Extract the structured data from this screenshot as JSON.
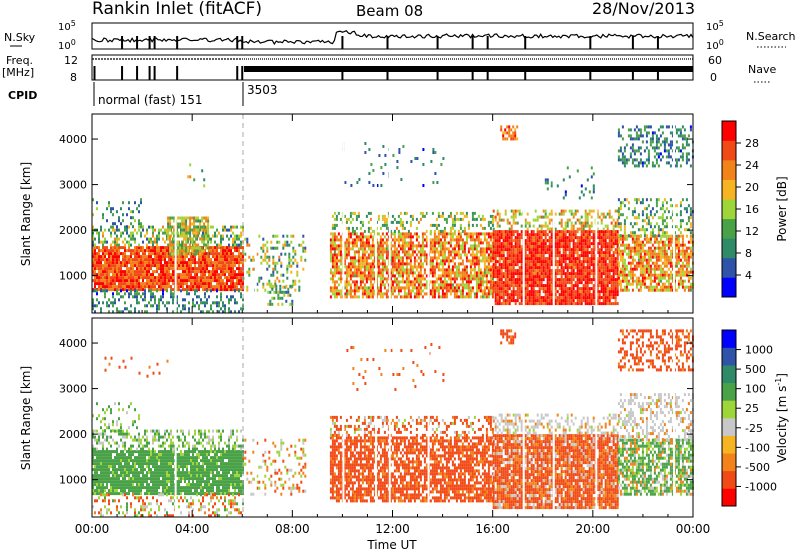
{
  "header": {
    "station": "Rankin Inlet (fitACF)",
    "beam": "Beam 08",
    "date": "28/Nov/2013"
  },
  "top_panels": {
    "nsky_label": "N.Sky",
    "nsky_ticks": [
      "10^5",
      "10^0"
    ],
    "nsearch_label": "N.Search",
    "nsearch_ticks": [
      "10^5",
      "10^0"
    ],
    "freq_label": "Freq.",
    "freq_unit": "[MHz]",
    "freq_ticks": [
      "12",
      "8"
    ],
    "nave_label": "Nave",
    "nave_ticks": [
      "60",
      "0"
    ],
    "cpid_label": "CPID",
    "cpid_segments": [
      {
        "label": "normal (fast) 151",
        "start_hour": 0,
        "end_hour": 6.05
      },
      {
        "label": "3503",
        "start_hour": 6.05,
        "end_hour": 24
      }
    ]
  },
  "chart_data": [
    {
      "type": "heatmap",
      "title": "",
      "quantity": "Power",
      "colorbar_label": "Power [dB]",
      "colorbar_ticks": [
        "4",
        "8",
        "12",
        "16",
        "20",
        "24",
        "28"
      ],
      "colorbar_range": [
        0,
        32
      ],
      "colormap": [
        "#0000ff",
        "#2e53a8",
        "#2f8a68",
        "#4aa248",
        "#9ed63a",
        "#f6b422",
        "#f2831a",
        "#f24a16",
        "#ff0000"
      ],
      "xlabel": "",
      "ylabel": "Slant Range [km]",
      "x_ticks": [
        "00:00",
        "04:00",
        "08:00",
        "12:00",
        "16:00",
        "20:00",
        "00:00"
      ],
      "xlim_hours": [
        0,
        24
      ],
      "y_ticks": [
        "1000",
        "2000",
        "3000",
        "4000"
      ],
      "ylim_km": [
        180,
        4550
      ],
      "scatter_regions": [
        {
          "t0": 0.0,
          "t1": 6.0,
          "r0": 700,
          "r1": 1650,
          "dens": 0.92,
          "value_lo": 22,
          "value_hi": 31
        },
        {
          "t0": 0.0,
          "t1": 6.0,
          "r0": 1650,
          "r1": 2100,
          "dens": 0.45,
          "value_lo": 6,
          "value_hi": 22
        },
        {
          "t0": 3.0,
          "t1": 4.6,
          "r0": 1500,
          "r1": 2300,
          "dens": 0.7,
          "value_lo": 10,
          "value_hi": 24
        },
        {
          "t0": 0.0,
          "t1": 6.0,
          "r0": 200,
          "r1": 700,
          "dens": 0.35,
          "value_lo": 3,
          "value_hi": 14
        },
        {
          "t0": 0.0,
          "t1": 2.0,
          "r0": 2100,
          "r1": 2700,
          "dens": 0.22,
          "value_lo": 4,
          "value_hi": 16
        },
        {
          "t0": 6.0,
          "t1": 8.5,
          "r0": 700,
          "r1": 1900,
          "dens": 0.22,
          "value_lo": 4,
          "value_hi": 24
        },
        {
          "t0": 7.0,
          "t1": 8.0,
          "r0": 350,
          "r1": 800,
          "dens": 0.45,
          "value_lo": 6,
          "value_hi": 20
        },
        {
          "t0": 9.5,
          "t1": 16.0,
          "r0": 550,
          "r1": 1950,
          "dens": 0.78,
          "value_lo": 14,
          "value_hi": 31
        },
        {
          "t0": 9.5,
          "t1": 16.0,
          "r0": 1950,
          "r1": 2400,
          "dens": 0.35,
          "value_lo": 8,
          "value_hi": 22
        },
        {
          "t0": 16.0,
          "t1": 21.0,
          "r0": 400,
          "r1": 2000,
          "dens": 0.9,
          "value_lo": 24,
          "value_hi": 32
        },
        {
          "t0": 16.0,
          "t1": 21.0,
          "r0": 2000,
          "r1": 2450,
          "dens": 0.4,
          "value_lo": 12,
          "value_hi": 26
        },
        {
          "t0": 21.0,
          "t1": 24.0,
          "r0": 700,
          "r1": 1900,
          "dens": 0.72,
          "value_lo": 14,
          "value_hi": 30
        },
        {
          "t0": 21.0,
          "t1": 24.0,
          "r0": 1900,
          "r1": 2700,
          "dens": 0.35,
          "value_lo": 6,
          "value_hi": 20
        },
        {
          "t0": 21.0,
          "t1": 24.0,
          "r0": 3400,
          "r1": 4300,
          "dens": 0.42,
          "value_lo": 3,
          "value_hi": 14
        },
        {
          "t0": 10.0,
          "t1": 14.0,
          "r0": 3000,
          "r1": 4000,
          "dens": 0.08,
          "value_lo": 3,
          "value_hi": 12
        },
        {
          "t0": 16.3,
          "t1": 17.0,
          "r0": 4000,
          "r1": 4300,
          "dens": 0.5,
          "value_lo": 18,
          "value_hi": 30
        },
        {
          "t0": 18.0,
          "t1": 20.0,
          "r0": 2700,
          "r1": 3400,
          "dens": 0.12,
          "value_lo": 3,
          "value_hi": 14
        },
        {
          "t0": 3.8,
          "t1": 4.5,
          "r0": 3000,
          "r1": 3600,
          "dens": 0.2,
          "value_lo": 6,
          "value_hi": 24
        }
      ]
    },
    {
      "type": "heatmap",
      "title": "",
      "quantity": "Velocity",
      "colorbar_label": "Velocity [m s^-1]",
      "colorbar_ticks": [
        "1000",
        "500",
        "100",
        "25",
        "-25",
        "-100",
        "-500",
        "-1000"
      ],
      "colorbar_range": [
        -1000,
        1000
      ],
      "colormap": [
        "#ff0000",
        "#f24a16",
        "#f2831a",
        "#f6b422",
        "#c8c8c8",
        "#9ed63a",
        "#4aa248",
        "#2f8a68",
        "#2e53a8",
        "#0000ff"
      ],
      "xlabel": "Time UT",
      "ylabel": "Slant Range [km]",
      "x_ticks": [
        "00:00",
        "04:00",
        "08:00",
        "12:00",
        "16:00",
        "20:00",
        "00:00"
      ],
      "xlim_hours": [
        0,
        24
      ],
      "y_ticks": [
        "1000",
        "2000",
        "3000",
        "4000"
      ],
      "ylim_km": [
        180,
        4550
      ],
      "scatter_regions": [
        {
          "t0": 0.0,
          "t1": 6.0,
          "r0": 700,
          "r1": 1650,
          "dens": 0.9,
          "value_lo": 50,
          "value_hi": 500
        },
        {
          "t0": 0.0,
          "t1": 6.0,
          "r0": 1650,
          "r1": 2100,
          "dens": 0.45,
          "value_lo": -20,
          "value_hi": 200
        },
        {
          "t0": 0.0,
          "t1": 6.0,
          "r0": 200,
          "r1": 700,
          "dens": 0.3,
          "value_lo": -200,
          "value_hi": 150
        },
        {
          "t0": 0.0,
          "t1": 2.0,
          "r0": 2100,
          "r1": 2700,
          "dens": 0.22,
          "value_lo": -20,
          "value_hi": 200
        },
        {
          "t0": 6.0,
          "t1": 8.5,
          "r0": 700,
          "r1": 1900,
          "dens": 0.2,
          "value_lo": -200,
          "value_hi": 100
        },
        {
          "t0": 9.5,
          "t1": 16.0,
          "r0": 550,
          "r1": 1950,
          "dens": 0.78,
          "value_lo": -500,
          "value_hi": -30
        },
        {
          "t0": 9.5,
          "t1": 16.0,
          "r0": 1950,
          "r1": 2400,
          "dens": 0.35,
          "value_lo": -300,
          "value_hi": 50
        },
        {
          "t0": 16.0,
          "t1": 21.0,
          "r0": 400,
          "r1": 2000,
          "dens": 0.9,
          "value_lo": -300,
          "value_hi": 20
        },
        {
          "t0": 16.0,
          "t1": 21.0,
          "r0": 2000,
          "r1": 2450,
          "dens": 0.4,
          "value_lo": -40,
          "value_hi": 30
        },
        {
          "t0": 21.0,
          "t1": 24.0,
          "r0": 700,
          "r1": 1900,
          "dens": 0.72,
          "value_lo": -80,
          "value_hi": 300
        },
        {
          "t0": 21.0,
          "t1": 24.0,
          "r0": 1900,
          "r1": 2900,
          "dens": 0.4,
          "value_lo": -40,
          "value_hi": 30
        },
        {
          "t0": 21.0,
          "t1": 24.0,
          "r0": 3400,
          "r1": 4300,
          "dens": 0.42,
          "value_lo": -500,
          "value_hi": -40
        },
        {
          "t0": 10.0,
          "t1": 14.0,
          "r0": 3000,
          "r1": 4000,
          "dens": 0.06,
          "value_lo": -300,
          "value_hi": -30
        },
        {
          "t0": 16.3,
          "t1": 17.0,
          "r0": 4000,
          "r1": 4300,
          "dens": 0.5,
          "value_lo": -500,
          "value_hi": -50
        },
        {
          "t0": 0.5,
          "t1": 3.0,
          "r0": 3300,
          "r1": 3700,
          "dens": 0.08,
          "value_lo": -300,
          "value_hi": -30
        }
      ]
    }
  ]
}
